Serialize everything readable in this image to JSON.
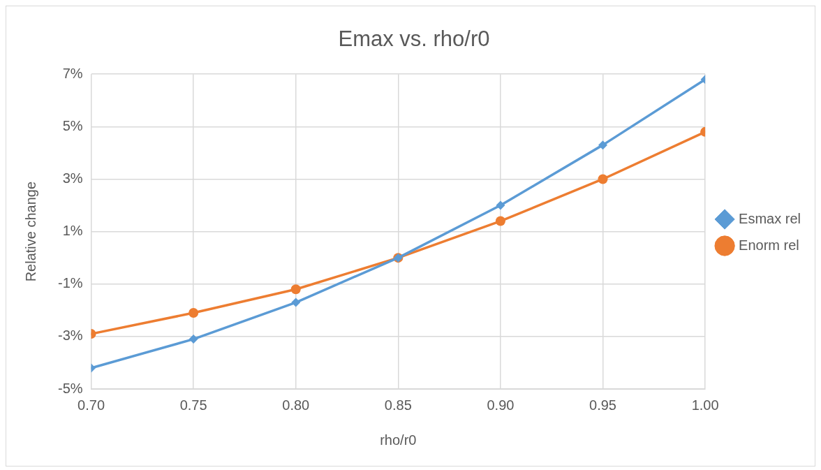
{
  "chart_data": {
    "type": "line",
    "title": "Emax vs. rho/r0",
    "xlabel": "rho/r0",
    "ylabel": "Relative change",
    "x": [
      0.7,
      0.75,
      0.8,
      0.85,
      0.9,
      0.95,
      1.0
    ],
    "series": [
      {
        "name": "Esmax rel",
        "color": "#5b9bd5",
        "marker": "diamond",
        "values": [
          -4.2,
          -3.1,
          -1.7,
          0,
          2.0,
          4.3,
          6.8
        ]
      },
      {
        "name": "Enorm rel",
        "color": "#ed7d31",
        "marker": "circle",
        "values": [
          -2.9,
          -2.1,
          -1.2,
          0,
          1.4,
          3.0,
          4.8
        ]
      }
    ],
    "xlim": [
      0.7,
      1.0
    ],
    "xticks": [
      {
        "value": 0.7,
        "label": "0.70"
      },
      {
        "value": 0.75,
        "label": "0.75"
      },
      {
        "value": 0.8,
        "label": "0.80"
      },
      {
        "value": 0.85,
        "label": "0.85"
      },
      {
        "value": 0.9,
        "label": "0.90"
      },
      {
        "value": 0.95,
        "label": "0.95"
      },
      {
        "value": 1.0,
        "label": "1.00"
      }
    ],
    "ylim": [
      -5,
      7
    ],
    "yticks": [
      {
        "value": -5,
        "label": "-5%"
      },
      {
        "value": -3,
        "label": "-3%"
      },
      {
        "value": -1,
        "label": "-1%"
      },
      {
        "value": 1,
        "label": "1%"
      },
      {
        "value": 3,
        "label": "3%"
      },
      {
        "value": 5,
        "label": "5%"
      },
      {
        "value": 7,
        "label": "7%"
      }
    ],
    "grid": true,
    "legend": "right",
    "line_style": "solid"
  }
}
